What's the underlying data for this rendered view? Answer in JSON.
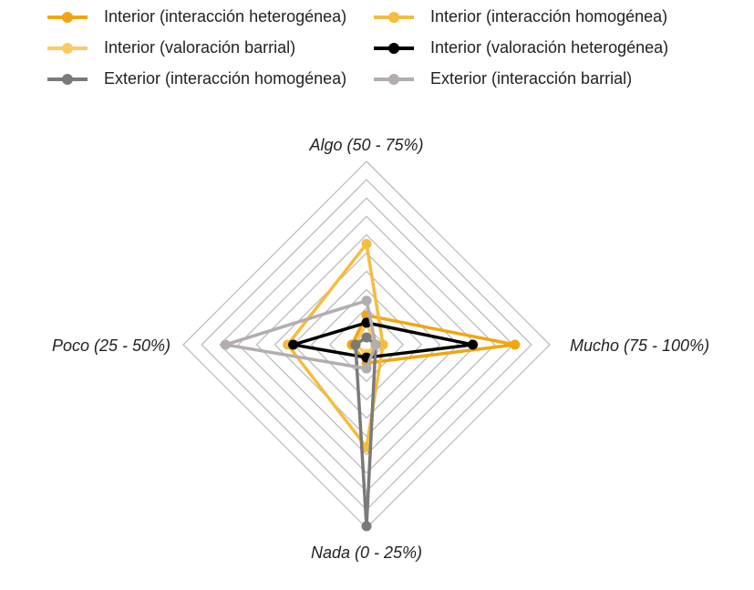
{
  "chart_data": {
    "type": "radar",
    "categories": [
      "Algo (50 - 75%)",
      "Mucho (75 - 100%)",
      "Nada (0 - 25%)",
      "Poco (25 - 50%)"
    ],
    "rlim": [
      0,
      100
    ],
    "rticks": [
      10,
      20,
      30,
      40,
      50,
      60,
      70,
      80,
      90,
      100
    ],
    "grid": true,
    "legend": "top",
    "series": [
      {
        "name": "Interior (interacción heterogénea)",
        "color": "#f2a60d",
        "values": [
          16,
          81,
          10,
          8
        ]
      },
      {
        "name": "Interior (interacción homogénea)",
        "color": "#f5bd3c",
        "values": [
          55,
          9,
          56,
          43
        ]
      },
      {
        "name": "Interior (valoración barrial)",
        "color": "#f9cb62",
        "values": [
          12,
          5,
          5,
          6
        ]
      },
      {
        "name": "Interior (valoración heterogénea)",
        "color": "#000000",
        "values": [
          12,
          58,
          7,
          40
        ]
      },
      {
        "name": "Exterior (interacción homogénea)",
        "color": "#7a7a7a",
        "values": [
          4,
          5,
          99,
          6
        ]
      },
      {
        "name": "Exterior (interacción  barrial)",
        "color": "#b4adae",
        "values": [
          24,
          5,
          13,
          77
        ]
      }
    ]
  }
}
